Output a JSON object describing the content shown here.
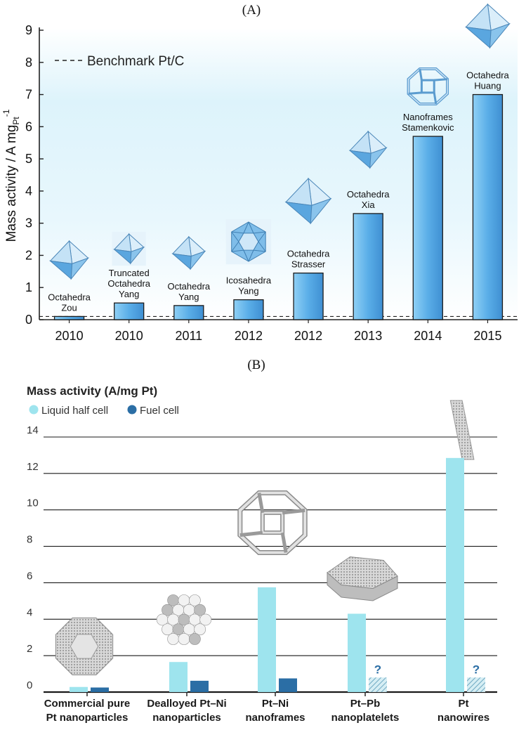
{
  "panel_a_label": "(A)",
  "panel_b_label": "(B)",
  "chart_data": [
    {
      "type": "bar",
      "ylabel_main": "Mass activity / A mg",
      "ylabel_sub": "Pt",
      "ylabel_sup": "-1",
      "ylim": [
        0,
        9
      ],
      "yticks": [
        "0",
        "1",
        "2",
        "3",
        "4",
        "5",
        "6",
        "7",
        "8",
        "9"
      ],
      "grid": false,
      "legend": {
        "label": "Benchmark Pt/C",
        "position": "top-left",
        "style": "dashed"
      },
      "benchmark_value": 0.1,
      "bar_color": "#5aaee8",
      "categories": [
        "2010",
        "2010",
        "2011",
        "2012",
        "2012",
        "2013",
        "2014",
        "2015"
      ],
      "values": [
        0.1,
        0.52,
        0.44,
        0.62,
        1.45,
        3.3,
        5.7,
        7.0
      ],
      "labels": [
        [
          "Octahedra",
          "Zou"
        ],
        [
          "Truncated",
          "Octahedra",
          "Yang"
        ],
        [
          "Octahedra",
          "Yang"
        ],
        [
          "Icosahedra",
          "Yang"
        ],
        [
          "Octahedra",
          "Strasser"
        ],
        [
          "Octahedra",
          "Xia"
        ],
        [
          "Nanoframes",
          "Stamenkovic"
        ],
        [
          "Octahedra",
          "Huang"
        ]
      ],
      "icons": [
        "octahedron-icon",
        "truncated-octahedron-icon",
        "octahedron-icon",
        "icosahedron-icon",
        "octahedron-icon",
        "octahedron-icon",
        "nanoframe-icon",
        "octahedron-icon"
      ]
    },
    {
      "type": "bar",
      "title": "Mass activity (A/mg Pt)",
      "ylim": [
        0,
        14
      ],
      "yticks": [
        "0",
        "2",
        "4",
        "6",
        "8",
        "10",
        "12",
        "14"
      ],
      "grid": true,
      "legend_position": "top-left",
      "categories": [
        [
          "Commercial pure",
          "Pt nanoparticles"
        ],
        [
          "Dealloyed Pt–Ni",
          "nanoparticles"
        ],
        [
          "Pt–Ni",
          "nanoframes"
        ],
        [
          "Pt–Pb",
          "nanoplatelets"
        ],
        [
          "Pt",
          "nanowires"
        ]
      ],
      "series": [
        {
          "name": "Liquid half cell",
          "color": "#9ee4ee",
          "values": [
            0.28,
            1.65,
            5.75,
            4.3,
            12.85
          ]
        },
        {
          "name": "Fuel cell",
          "color": "#2b6ea5",
          "values": [
            0.25,
            0.62,
            0.75,
            null,
            null
          ]
        }
      ],
      "unknown_marker": "?",
      "unknown_values": [
        null,
        null,
        null,
        0.8,
        0.8
      ],
      "icons": [
        "nanoparticle-icon",
        "dealloyed-nanoparticle-icon",
        "nanoframe-icon",
        "nanoplatelet-icon",
        "nanowire-icon"
      ]
    }
  ]
}
